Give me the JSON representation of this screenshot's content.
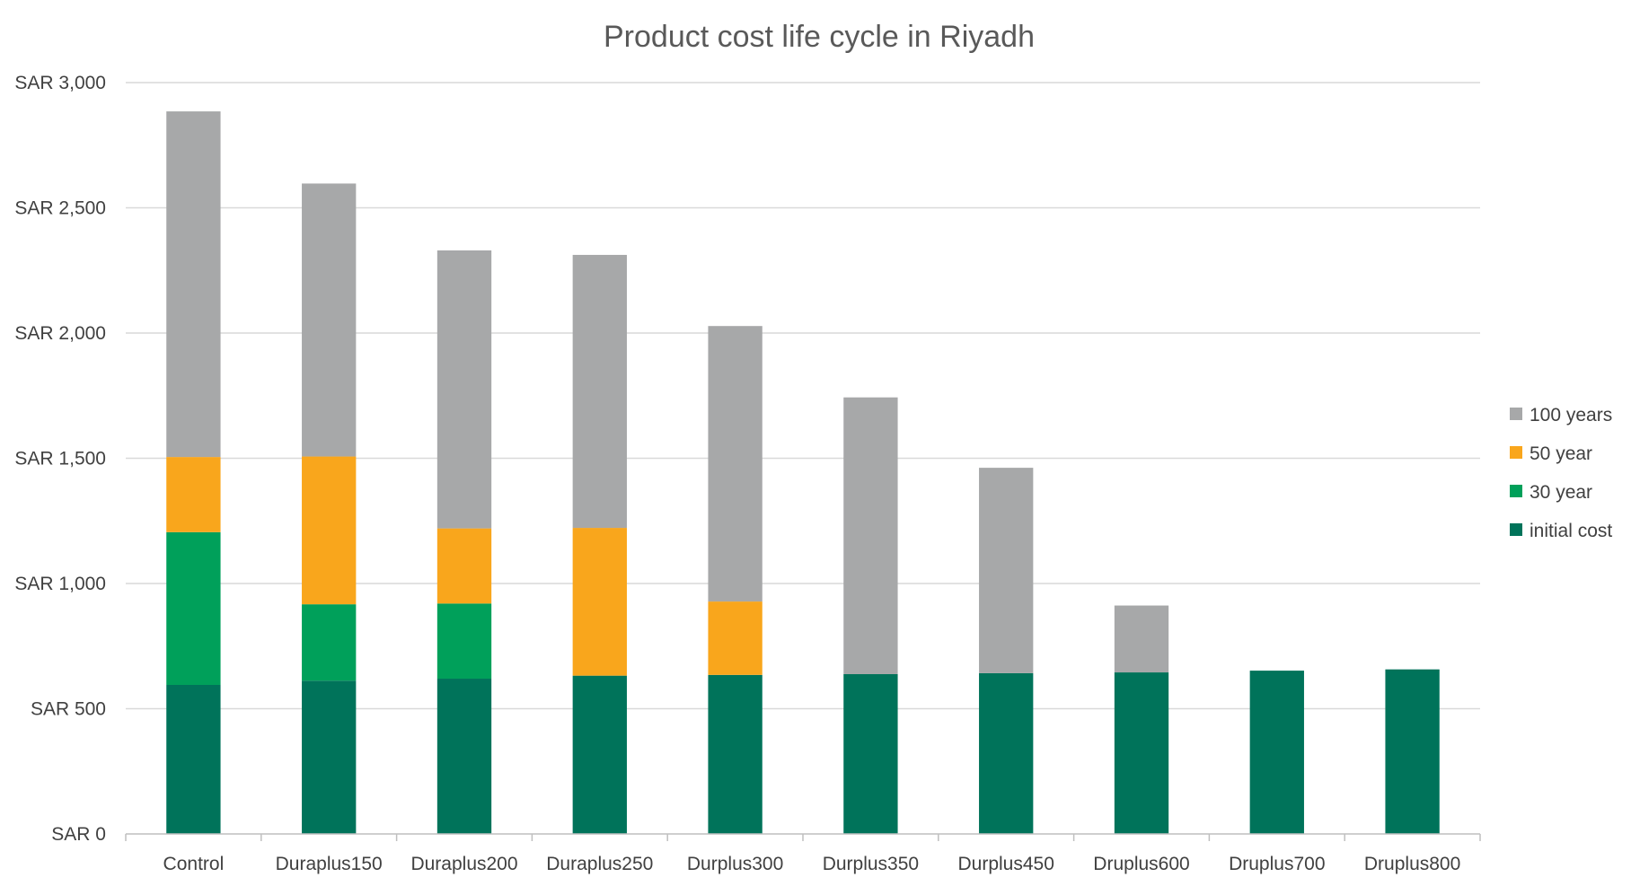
{
  "chart_data": {
    "type": "bar",
    "stacked": true,
    "title": "Product cost life cycle in Riyadh",
    "xlabel": "",
    "ylabel": "",
    "ylim": [
      0,
      3000
    ],
    "y_ticks": [
      0,
      500,
      1000,
      1500,
      2000,
      2500,
      3000
    ],
    "y_tick_labels": [
      "SAR 0",
      "SAR 500",
      "SAR 1,000",
      "SAR 1,500",
      "SAR 2,000",
      "SAR 2,500",
      "SAR 3,000"
    ],
    "grid": true,
    "legend_position": "right",
    "categories": [
      "Control",
      "Duraplus150",
      "Duraplus200",
      "Duraplus250",
      "Durplus300",
      "Durplus350",
      "Durplus450",
      "Druplus600",
      "Druplus700",
      "Druplus800"
    ],
    "series": [
      {
        "name": "initial cost",
        "color": "#00735a",
        "values": [
          595,
          612,
          620,
          632,
          635,
          638,
          642,
          645,
          652,
          657
        ]
      },
      {
        "name": "30 year",
        "color": "#00a05a",
        "values": [
          610,
          305,
          300,
          0,
          0,
          0,
          0,
          0,
          0,
          0
        ]
      },
      {
        "name": "50 year",
        "color": "#f9a61c",
        "values": [
          300,
          590,
          300,
          590,
          293,
          0,
          0,
          0,
          0,
          0
        ]
      },
      {
        "name": "100 years",
        "color": "#a7a8a9",
        "values": [
          1380,
          1090,
          1110,
          1090,
          1100,
          1105,
          820,
          267,
          0,
          0
        ]
      }
    ],
    "legend_order": [
      "100 years",
      "50 year",
      "30 year",
      "initial cost"
    ]
  }
}
